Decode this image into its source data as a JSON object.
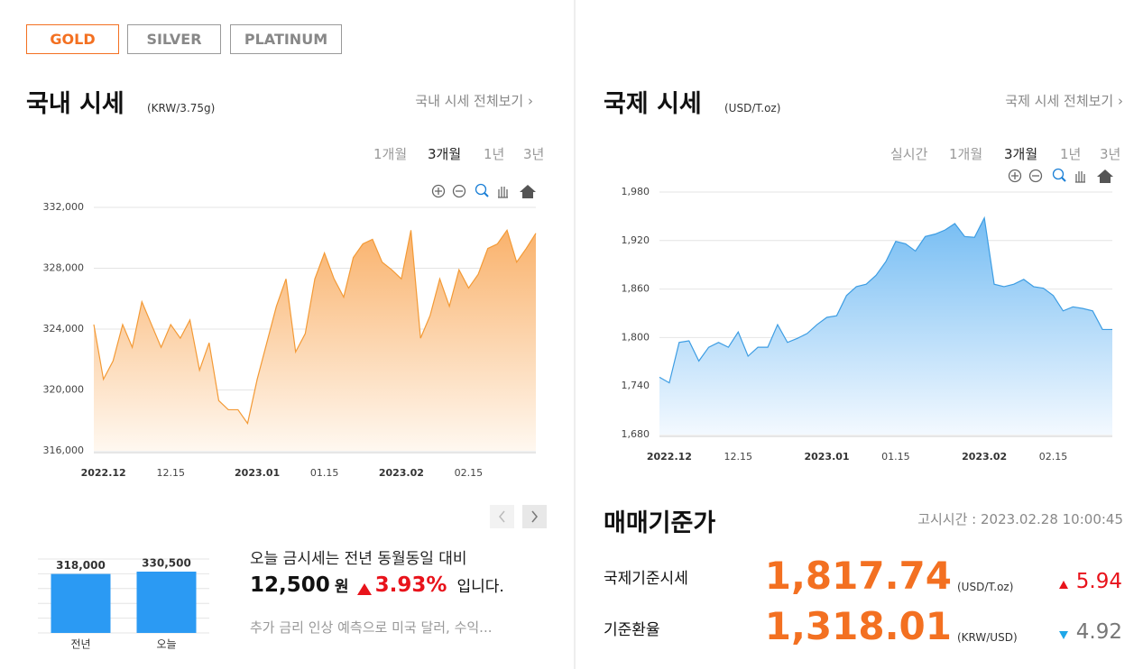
{
  "tabs": [
    "GOLD",
    "SILVER",
    "PLATINUM"
  ],
  "domestic": {
    "title": "국내 시세",
    "unit": "(KRW/3.75g)",
    "link": "국내 시세 전체보기",
    "periods": [
      "1개월",
      "3개월",
      "1년",
      "3년"
    ]
  },
  "international": {
    "title": "국제 시세",
    "unit": "(USD/T.oz)",
    "link": "국제 시세 전체보기",
    "periods": [
      "실시간",
      "1개월",
      "3개월",
      "1년",
      "3년"
    ]
  },
  "chart_data": [
    {
      "type": "area",
      "color": "#f39a36",
      "categories": [
        null,
        "2022.12",
        null,
        null,
        null,
        null,
        null,
        null,
        "12.15",
        null,
        null,
        null,
        null,
        null,
        null,
        null,
        null,
        "2023.01",
        null,
        null,
        null,
        null,
        null,
        null,
        "01.15",
        null,
        null,
        null,
        null,
        null,
        null,
        null,
        "2023.02",
        null,
        null,
        null,
        null,
        null,
        null,
        "02.15",
        null,
        null,
        null,
        null,
        null,
        null,
        null
      ],
      "values": [
        324300,
        320700,
        321900,
        324300,
        322800,
        325800,
        324300,
        322800,
        324300,
        323400,
        324600,
        321300,
        323100,
        319300,
        318700,
        318700,
        317800,
        320700,
        323100,
        325500,
        327300,
        322500,
        323700,
        327300,
        329000,
        327300,
        326100,
        328700,
        329600,
        329900,
        328400,
        327900,
        327300,
        330500,
        323400,
        324900,
        327300,
        325500,
        327900,
        326700,
        327600,
        329300,
        329600,
        330500,
        328400,
        329300,
        330300
      ],
      "ylim": [
        316000,
        332000
      ],
      "yticks": [
        {
          "value": 316000,
          "label": "316,000"
        },
        {
          "value": 320000,
          "label": "320,000"
        },
        {
          "value": 324000,
          "label": "324,000"
        },
        {
          "value": 328000,
          "label": "328,000"
        },
        {
          "value": 332000,
          "label": "332,000"
        }
      ],
      "grid": true
    },
    {
      "type": "area",
      "color": "#3d9de3",
      "categories": [
        null,
        "2022.12",
        null,
        null,
        null,
        null,
        null,
        null,
        "12.15",
        null,
        null,
        null,
        null,
        null,
        null,
        null,
        null,
        "2023.01",
        null,
        null,
        null,
        null,
        null,
        null,
        "01.15",
        null,
        null,
        null,
        null,
        null,
        null,
        null,
        null,
        "2023.02",
        null,
        null,
        null,
        null,
        null,
        null,
        "02.15",
        null,
        null,
        null,
        null,
        null,
        null
      ],
      "values": [
        1751,
        1744,
        1794,
        1796,
        1771,
        1788,
        1794,
        1788,
        1807,
        1777,
        1788,
        1788,
        1816,
        1794,
        1799,
        1805,
        1816,
        1825,
        1827,
        1852,
        1863,
        1866,
        1877,
        1894,
        1919,
        1916,
        1907,
        1925,
        1928,
        1933,
        1941,
        1925,
        1924,
        1948,
        1866,
        1863,
        1866,
        1872,
        1863,
        1861,
        1852,
        1833,
        1838,
        1836,
        1833,
        1810,
        1810
      ],
      "ylim": [
        1680,
        1980
      ],
      "yticks": [
        {
          "value": 1680,
          "label": "1,680"
        },
        {
          "value": 1740,
          "label": "1,740"
        },
        {
          "value": 1800,
          "label": "1,800"
        },
        {
          "value": 1860,
          "label": "1,860"
        },
        {
          "value": 1920,
          "label": "1,920"
        },
        {
          "value": 1980,
          "label": "1,980"
        }
      ],
      "grid": true
    },
    {
      "type": "bar",
      "color": "#2b9af3",
      "categories": [
        "전년",
        "오늘"
      ],
      "values": [
        318000,
        330500
      ],
      "value_labels": [
        "318,000",
        "330,500"
      ]
    }
  ],
  "summary": {
    "line1": "오늘 금시세는 전년 동월동일 대비",
    "diff": "12,500",
    "diff_unit": "원",
    "pct": "3.93%",
    "tail": "입니다.",
    "note": "추가 금리 인상 예측으로 미국 달러, 수익..."
  },
  "base_price": {
    "title": "매매기준가",
    "time": "고시시간 : 2023.02.28 10:00:45",
    "rows": [
      {
        "label": "국제기준시세",
        "value": "1,817.74",
        "unit": "(USD/T.oz)",
        "change": "5.94"
      },
      {
        "label": "기준환율",
        "value": "1,318.01",
        "unit": "(KRW/USD)",
        "change": "4.92"
      }
    ]
  }
}
